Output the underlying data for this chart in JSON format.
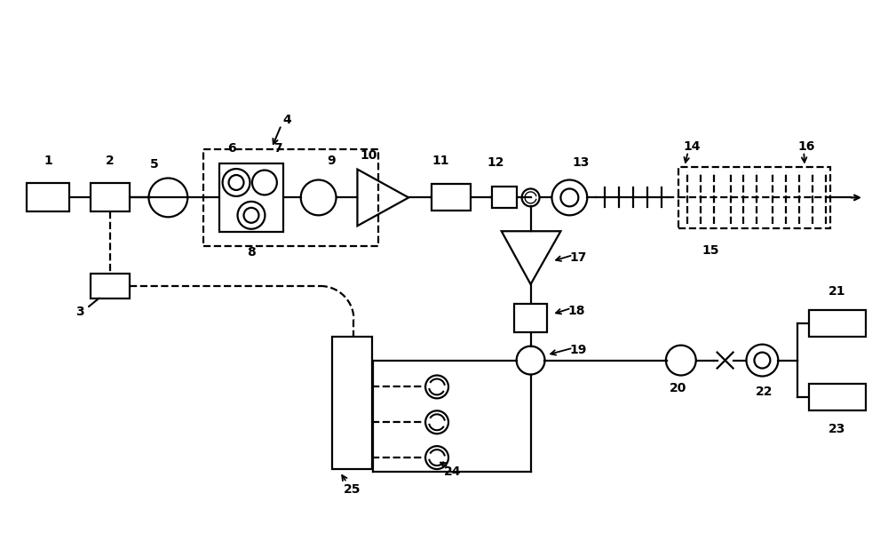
{
  "bg_color": "#ffffff",
  "line_color": "#000000",
  "label_fontsize": 10,
  "label_fontweight": "bold"
}
